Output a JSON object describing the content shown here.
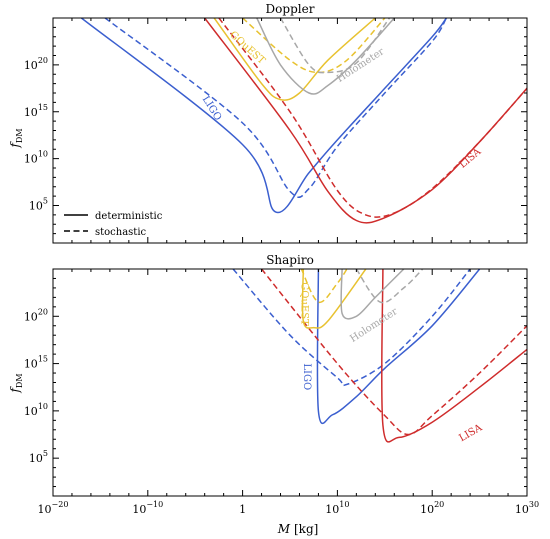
{
  "figure": {
    "xlabel_main": "M",
    "xlabel_unit": "[kg]",
    "ylabel_main": "f",
    "ylabel_sub": "DM",
    "x_ticks": [
      {
        "exp": -20,
        "base": "10",
        "sup": "−20"
      },
      {
        "exp": -10,
        "base": "10",
        "sup": "−10"
      },
      {
        "exp": 0,
        "base": "1",
        "sup": ""
      },
      {
        "exp": 10,
        "base": "10",
        "sup": "10"
      },
      {
        "exp": 20,
        "base": "10",
        "sup": "20"
      },
      {
        "exp": 30,
        "base": "10",
        "sup": "30"
      }
    ],
    "y_ticks": [
      {
        "exp": 5,
        "base": "10",
        "sup": "5"
      },
      {
        "exp": 10,
        "base": "10",
        "sup": "10"
      },
      {
        "exp": 15,
        "base": "10",
        "sup": "15"
      },
      {
        "exp": 20,
        "base": "10",
        "sup": "20"
      }
    ],
    "legend": [
      {
        "label": "deterministic",
        "style": "solid"
      },
      {
        "label": "stochastic",
        "style": "dashed"
      }
    ]
  },
  "chart_data": [
    {
      "type": "line",
      "title": "Doppler",
      "x_scale": "log",
      "y_scale": "log",
      "xlim_log10": [
        -20,
        30
      ],
      "ylim_log10": [
        1,
        25
      ],
      "xlabel": "M [kg]",
      "ylabel": "f_DM",
      "series": [
        {
          "name": "LIGO",
          "color": "#3b5fcf",
          "style": "solid",
          "log10_points": [
            [
              -17,
              25
            ],
            [
              0,
              11.5
            ],
            [
              3.5,
              4.3
            ],
            [
              7,
              8.5
            ],
            [
              10,
              12
            ],
            [
              15,
              17.5
            ],
            [
              20,
              23
            ],
            [
              21.5,
              25
            ]
          ]
        },
        {
          "name": "LIGO",
          "color": "#3b5fcf",
          "style": "dashed",
          "log10_points": [
            [
              -14.5,
              25
            ],
            [
              0,
              13.8
            ],
            [
              5,
              6.5
            ],
            [
              7,
              6.8
            ],
            [
              10,
              11.3
            ],
            [
              15,
              17
            ],
            [
              20,
              22.5
            ],
            [
              21.5,
              25
            ]
          ]
        },
        {
          "name": "LISA",
          "color": "#cf2c2c",
          "style": "solid",
          "log10_points": [
            [
              -4,
              25
            ],
            [
              5,
              13
            ],
            [
              9,
              6.5
            ],
            [
              12,
              3.4
            ],
            [
              15,
              3.7
            ],
            [
              20,
              6.7
            ],
            [
              25,
              11.8
            ],
            [
              30,
              17.5
            ]
          ]
        },
        {
          "name": "LISA",
          "color": "#cf2c2c",
          "style": "dashed",
          "log10_points": [
            [
              -2.5,
              25
            ],
            [
              5,
              15
            ],
            [
              10,
              6.6
            ],
            [
              13,
              4.0
            ],
            [
              16,
              4.2
            ],
            [
              20,
              6.8
            ],
            [
              25,
              11.8
            ],
            [
              30,
              17.5
            ]
          ]
        },
        {
          "name": "GQuEST",
          "color": "#e8c230",
          "style": "solid",
          "log10_points": [
            [
              -3,
              25
            ],
            [
              2,
              18
            ],
            [
              4,
              16.3
            ],
            [
              6,
              17
            ],
            [
              9,
              20.5
            ],
            [
              14,
              25
            ]
          ]
        },
        {
          "name": "GQuEST",
          "color": "#e8c230",
          "style": "dashed",
          "log10_points": [
            [
              0,
              25
            ],
            [
              5,
              20.5
            ],
            [
              8,
              19.2
            ],
            [
              11,
              20.5
            ],
            [
              15,
              25
            ]
          ]
        },
        {
          "name": "Holometer",
          "color": "#a8a8a8",
          "style": "solid",
          "log10_points": [
            [
              1.5,
              25
            ],
            [
              4,
              20
            ],
            [
              7,
              17
            ],
            [
              9,
              17.8
            ],
            [
              12,
              20.5
            ],
            [
              16,
              25
            ]
          ]
        },
        {
          "name": "Holometer",
          "color": "#a8a8a8",
          "style": "dashed",
          "log10_points": [
            [
              4,
              25
            ],
            [
              7,
              20
            ],
            [
              9,
              19.2
            ],
            [
              12,
              20.2
            ],
            [
              15.5,
              25
            ]
          ]
        }
      ]
    },
    {
      "type": "line",
      "title": "Shapiro",
      "x_scale": "log",
      "y_scale": "log",
      "xlim_log10": [
        -20,
        30
      ],
      "ylim_log10": [
        1,
        25
      ],
      "xlabel": "M [kg]",
      "ylabel": "f_DM",
      "series": [
        {
          "name": "LIGO",
          "color": "#3b5fcf",
          "style": "solid",
          "log10_points": [
            [
              8,
              25
            ],
            [
              8,
              10
            ],
            [
              9.5,
              9.6
            ],
            [
              12,
              11.5
            ],
            [
              15,
              14.5
            ],
            [
              20,
              19
            ],
            [
              25,
              25
            ]
          ]
        },
        {
          "name": "LIGO",
          "color": "#3b5fcf",
          "style": "dashed",
          "log10_points": [
            [
              -1,
              25
            ],
            [
              5,
              18
            ],
            [
              10,
              13.5
            ],
            [
              11,
              12.8
            ],
            [
              15,
              15
            ],
            [
              20,
              20
            ],
            [
              24,
              25
            ]
          ]
        },
        {
          "name": "LISA",
          "color": "#cf2c2c",
          "style": "solid",
          "log10_points": [
            [
              14.8,
              25
            ],
            [
              14.8,
              8.5
            ],
            [
              16.5,
              7.2
            ],
            [
              20,
              8.8
            ],
            [
              25,
              12.5
            ],
            [
              30,
              16.5
            ]
          ]
        },
        {
          "name": "LISA",
          "color": "#cf2c2c",
          "style": "dashed",
          "log10_points": [
            [
              2,
              25
            ],
            [
              10,
              15
            ],
            [
              15,
              9.5
            ],
            [
              17.5,
              7.5
            ],
            [
              20,
              9.5
            ],
            [
              25,
              14
            ],
            [
              30,
              19
            ]
          ]
        },
        {
          "name": "GQuEST",
          "color": "#e8c230",
          "style": "solid",
          "log10_points": [
            [
              6.4,
              25
            ],
            [
              6.4,
              19.5
            ],
            [
              7.5,
              18.8
            ],
            [
              9,
              19.5
            ],
            [
              13,
              25
            ]
          ]
        },
        {
          "name": "GQuEST",
          "color": "#e8c230",
          "style": "dashed",
          "log10_points": [
            [
              6.2,
              25
            ],
            [
              8,
              21.5
            ],
            [
              10,
              23.5
            ],
            [
              11,
              25
            ]
          ]
        },
        {
          "name": "Holometer",
          "color": "#a8a8a8",
          "style": "solid",
          "log10_points": [
            [
              10.5,
              25
            ],
            [
              10.5,
              20.3
            ],
            [
              12,
              20
            ],
            [
              14,
              22
            ],
            [
              17,
              25
            ]
          ]
        },
        {
          "name": "Holometer",
          "color": "#a8a8a8",
          "style": "dashed",
          "log10_points": [
            [
              12,
              25
            ],
            [
              14.5,
              21.5
            ],
            [
              17,
              23
            ],
            [
              19,
              25
            ]
          ]
        }
      ]
    }
  ],
  "curve_labels": [
    {
      "panel": 0,
      "text": "LIGO",
      "color": "#3b5fcf",
      "at_log10": [
        -3.5,
        15.2
      ],
      "rotate": 58
    },
    {
      "panel": 0,
      "text": "LISA",
      "color": "#cf2c2c",
      "at_log10": [
        24.2,
        9.8
      ],
      "rotate": -40
    },
    {
      "panel": 0,
      "text": "GQuEST",
      "color": "#e8c230",
      "at_log10": [
        0.3,
        21.6
      ],
      "rotate": 42
    },
    {
      "panel": 0,
      "text": "Holometer",
      "color": "#a8a8a8",
      "at_log10": [
        12.6,
        19.7
      ],
      "rotate": -33
    },
    {
      "panel": 1,
      "text": "LIGO",
      "color": "#3b5fcf",
      "at_log10": [
        6.5,
        13.6
      ],
      "rotate": 90
    },
    {
      "panel": 1,
      "text": "LISA",
      "color": "#cf2c2c",
      "at_log10": [
        24.2,
        7.4
      ],
      "rotate": -30
    },
    {
      "panel": 1,
      "text": "GQuEST",
      "color": "#e8c230",
      "at_log10": [
        6.2,
        21.3
      ],
      "rotate": 90
    },
    {
      "panel": 1,
      "text": "Holometer",
      "color": "#a8a8a8",
      "at_log10": [
        14,
        18.8
      ],
      "rotate": -33
    }
  ]
}
